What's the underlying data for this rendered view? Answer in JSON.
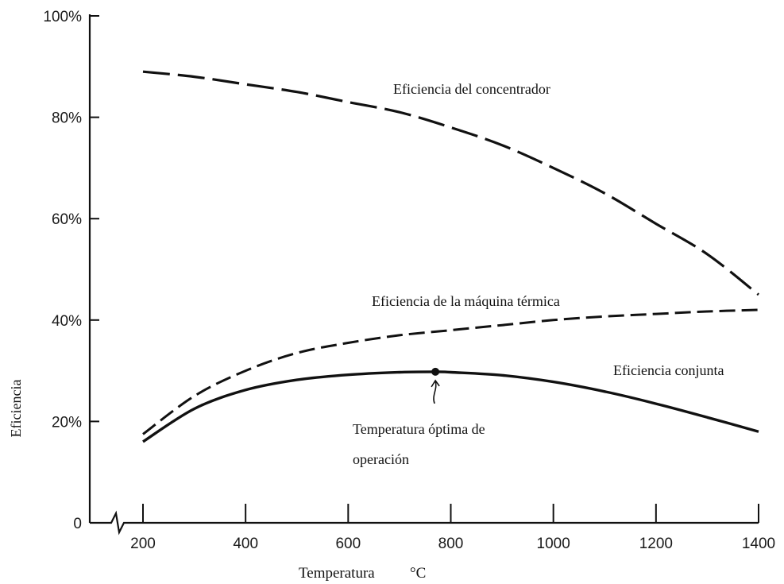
{
  "chart_data": {
    "type": "line",
    "xlabel": "Temperatura",
    "xunit": "°C",
    "ylabel": "Eficiencia",
    "xlim": [
      200,
      1400
    ],
    "ylim": [
      0,
      100
    ],
    "x_ticks": [
      200,
      400,
      600,
      800,
      1000,
      1200,
      1400
    ],
    "x_tick_labels": [
      "200",
      "400",
      "600",
      "800",
      "1000",
      "1200",
      "1400"
    ],
    "y_ticks": [
      0,
      20,
      40,
      60,
      80,
      100
    ],
    "y_tick_labels": [
      "0",
      "20%",
      "40%",
      "60%",
      "80%",
      "100%"
    ],
    "axis_break": true,
    "grid": false,
    "legend": "none",
    "series": [
      {
        "name": "Eficiencia del concentrador",
        "style": "long-dash",
        "x": [
          200,
          300,
          400,
          500,
          600,
          700,
          800,
          900,
          1000,
          1100,
          1200,
          1300,
          1400
        ],
        "values": [
          89,
          88,
          86.5,
          85,
          83,
          81,
          78,
          74.5,
          70,
          65,
          59,
          53,
          45
        ]
      },
      {
        "name": "Eficiencia de la máquina térmica",
        "style": "short-dash",
        "x": [
          200,
          300,
          400,
          500,
          600,
          700,
          800,
          900,
          1000,
          1100,
          1200,
          1300,
          1400
        ],
        "values": [
          17.5,
          25,
          30,
          33.5,
          35.5,
          37,
          38,
          39,
          40,
          40.7,
          41.2,
          41.7,
          42
        ]
      },
      {
        "name": "Eficiencia conjunta",
        "style": "solid",
        "x": [
          200,
          300,
          400,
          500,
          600,
          700,
          770,
          800,
          900,
          1000,
          1100,
          1200,
          1300,
          1400
        ],
        "values": [
          16,
          22.5,
          26.2,
          28.2,
          29.2,
          29.7,
          29.8,
          29.7,
          29.1,
          27.8,
          25.9,
          23.5,
          20.8,
          18
        ]
      }
    ],
    "annotations": {
      "optimum": {
        "x": 770,
        "y": 29.8,
        "text_line1": "Temperatura óptima de",
        "text_line2": "operación"
      }
    }
  }
}
